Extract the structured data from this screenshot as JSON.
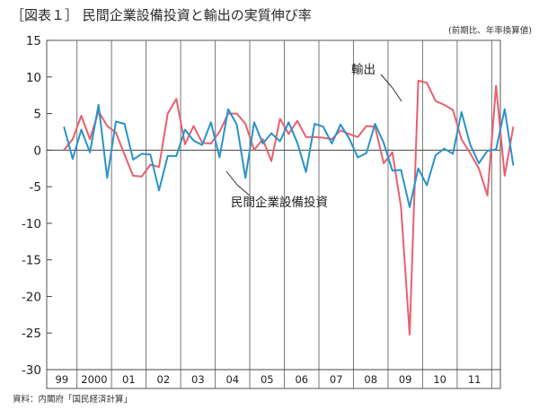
{
  "chart_data": {
    "type": "line",
    "title": "［図表１］ 民間企業設備投資と輸出の実質伸び率",
    "unit_note": "(前期比、年率換算値)",
    "source": "資料：内閣府「国民経済計算」",
    "ylim": [
      -30,
      15
    ],
    "yticks": [
      15,
      10,
      5,
      0,
      -5,
      -10,
      -15,
      -20,
      -25,
      -30
    ],
    "grid": "vertical year separators",
    "year_labels": [
      "99",
      "2000",
      "01",
      "02",
      "03",
      "04",
      "05",
      "06",
      "07",
      "08",
      "09",
      "10",
      "11"
    ],
    "series": [
      {
        "name": "輸出",
        "color": "#e8606e",
        "values": [
          0.0,
          1.5,
          4.7,
          1.5,
          5.3,
          3.3,
          2.4,
          -0.6,
          -3.5,
          -3.6,
          -2.0,
          -2.3,
          5.0,
          7.0,
          0.8,
          3.3,
          1.0,
          0.9,
          2.5,
          5.0,
          5.0,
          3.6,
          0.0,
          1.5,
          -1.5,
          4.3,
          2.2,
          4.0,
          1.8,
          1.8,
          1.7,
          1.5,
          2.7,
          2.2,
          1.8,
          3.3,
          3.2,
          -1.8,
          -0.3,
          -7.8,
          -25.2,
          9.5,
          9.2,
          6.7,
          6.2,
          5.5,
          1.5,
          -0.4,
          -2.5,
          -6.2,
          8.8,
          -3.5,
          3.2
        ]
      },
      {
        "name": "民間企業設備投資",
        "color": "#2a93c8",
        "values": [
          3.2,
          -1.2,
          2.8,
          -0.3,
          6.2,
          -3.8,
          3.9,
          3.6,
          -1.3,
          -0.5,
          -0.6,
          -5.5,
          -0.8,
          -0.8,
          2.8,
          1.3,
          0.7,
          3.8,
          -1.0,
          5.6,
          3.5,
          -3.8,
          3.8,
          0.9,
          2.3,
          1.2,
          3.8,
          1.0,
          -3.0,
          3.6,
          3.2,
          0.9,
          3.5,
          1.6,
          -1.0,
          -0.4,
          3.6,
          1.0,
          -2.8,
          -2.7,
          -7.8,
          -2.5,
          -4.8,
          -0.7,
          0.2,
          -0.5,
          5.2,
          0.8,
          -1.8,
          -0.1,
          0.1,
          5.6,
          -2.1
        ]
      }
    ],
    "annotations": [
      {
        "text": "輸出",
        "series": "輸出"
      },
      {
        "text": "民間企業設備投資",
        "series": "民間企業設備投資"
      }
    ]
  }
}
